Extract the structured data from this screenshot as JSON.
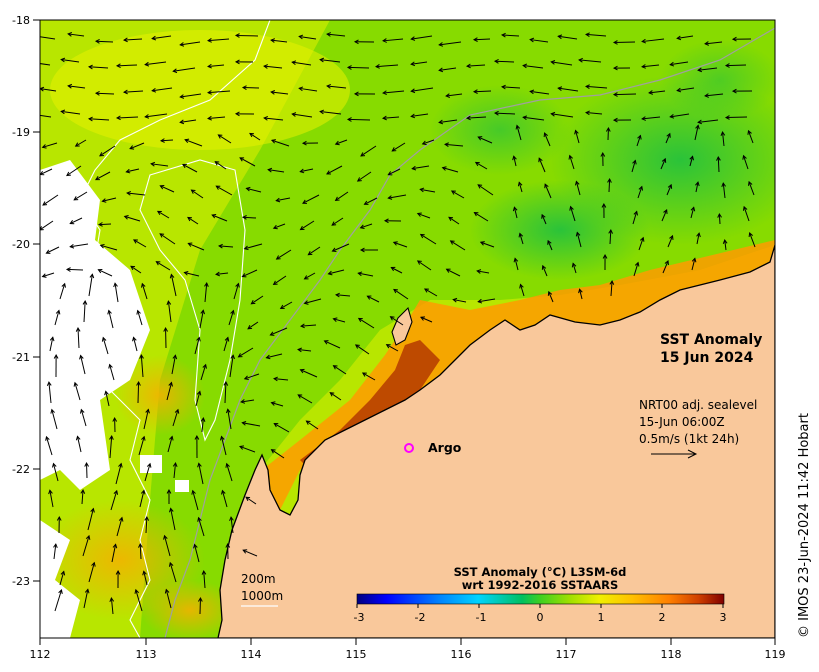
{
  "title": {
    "line1": "SST Anomaly",
    "line2": "15 Jun 2024"
  },
  "current_info": {
    "line1": "NRT00 adj. sealevel",
    "line2": "15-Jun 06:00Z",
    "line3": "0.5m/s (1kt 24h)"
  },
  "bathymetry_legend": {
    "line1": "200m",
    "line2": "1000m"
  },
  "argo": {
    "label": "Argo",
    "lon": 115.5,
    "lat": -21.85,
    "color": "#ff00ff"
  },
  "colorbar": {
    "title_line1": "SST Anomaly (°C) L3SM-6d",
    "title_line2": "wrt 1992-2016 SSTAARS",
    "min": -3,
    "max": 3,
    "tick_labels": [
      "-3",
      "-2",
      "-1",
      "0",
      "1",
      "2",
      "3"
    ]
  },
  "axes": {
    "lon_labels": [
      "112",
      "113",
      "114",
      "115",
      "116",
      "117",
      "118",
      "119"
    ],
    "lat_labels": [
      "-18",
      "-19",
      "-20",
      "-21",
      "-22",
      "-23"
    ],
    "lon_range": [
      112,
      119
    ],
    "lat_range": [
      -23.5,
      -18
    ]
  },
  "credit": "© IMOS 23-Jun-2024 11:42 Hobart",
  "colors": {
    "land": "#f9c89b",
    "no_data": "#ffffff"
  }
}
